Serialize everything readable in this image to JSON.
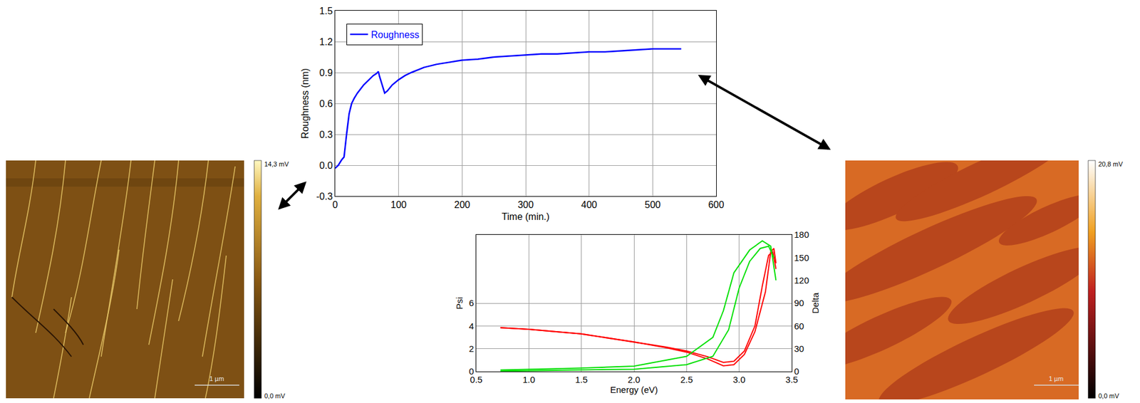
{
  "chart_data": [
    {
      "type": "line",
      "xlabel": "Time (min.)",
      "ylabel": "Roughness (nm)",
      "grid": true,
      "legend": "upper left",
      "x": [
        0,
        5,
        10,
        14,
        18,
        22,
        26,
        30,
        35,
        40,
        45,
        50,
        55,
        60,
        65,
        68,
        70,
        74,
        78,
        82,
        90,
        100,
        110,
        120,
        140,
        160,
        180,
        200,
        225,
        250,
        275,
        300,
        325,
        350,
        375,
        400,
        425,
        450,
        475,
        500,
        525,
        545
      ],
      "series": [
        {
          "name": "Roughness",
          "color": "#0000ff",
          "values": [
            -0.03,
            0.0,
            0.05,
            0.08,
            0.3,
            0.5,
            0.6,
            0.65,
            0.7,
            0.74,
            0.78,
            0.81,
            0.84,
            0.87,
            0.89,
            0.91,
            0.86,
            0.78,
            0.7,
            0.72,
            0.78,
            0.83,
            0.87,
            0.9,
            0.95,
            0.98,
            1.0,
            1.02,
            1.03,
            1.05,
            1.06,
            1.07,
            1.08,
            1.08,
            1.09,
            1.1,
            1.1,
            1.11,
            1.12,
            1.13,
            1.13,
            1.13
          ]
        }
      ],
      "xlim": [
        0,
        600
      ],
      "xticks": [
        0,
        100,
        200,
        300,
        400,
        500,
        600
      ],
      "ylim": [
        -0.3,
        1.5
      ],
      "yticks": [
        -0.3,
        {
          "value": 0,
          "label": "0.0"
        },
        0.3,
        0.6,
        0.9,
        1.2,
        1.5
      ]
    },
    {
      "type": "line",
      "xlabel": "Energy (eV)",
      "ylabel": "Psi",
      "y2label": "Delta",
      "grid": true,
      "series": [
        {
          "color": "#ff0000",
          "x": [
            0.73,
            1.0,
            1.5,
            2.0,
            2.3,
            2.5,
            2.7,
            2.85,
            2.95,
            3.05,
            3.15,
            3.25,
            3.3,
            3.33,
            3.35
          ],
          "values": [
            3.85,
            3.7,
            3.3,
            2.6,
            2.1,
            1.7,
            1.1,
            0.5,
            0.6,
            1.5,
            3.5,
            7.0,
            10.5,
            10.8,
            9.5
          ]
        },
        {
          "color": "#ff0000",
          "x": [
            0.73,
            1.0,
            1.5,
            2.0,
            2.3,
            2.5,
            2.7,
            2.85,
            2.95,
            3.05,
            3.15,
            3.22,
            3.28,
            3.32,
            3.35
          ],
          "values": [
            3.85,
            3.7,
            3.3,
            2.6,
            2.15,
            1.8,
            1.3,
            0.8,
            0.9,
            1.8,
            4.0,
            7.5,
            10.2,
            10.5,
            9.0
          ]
        },
        {
          "color": "#00e000",
          "axis": "y2",
          "x": [
            0.73,
            1.0,
            1.5,
            2.0,
            2.5,
            2.75,
            2.85,
            2.95,
            3.1,
            3.22,
            3.3,
            3.35
          ],
          "values": [
            2,
            3,
            4.5,
            7,
            20,
            45,
            80,
            130,
            160,
            172,
            165,
            120
          ]
        },
        {
          "color": "#00e000",
          "axis": "y2",
          "x": [
            0.73,
            1.0,
            1.5,
            2.0,
            2.5,
            2.75,
            2.9,
            3.0,
            3.1,
            3.2,
            3.28,
            3.33
          ],
          "values": [
            0.5,
            1,
            2,
            3,
            9,
            20,
            55,
            110,
            145,
            162,
            165,
            150
          ]
        }
      ],
      "xlim": [
        0.5,
        3.5
      ],
      "xticks": [
        0.5,
        {
          "value": 1,
          "label": "1.0"
        },
        1.5,
        {
          "value": 2,
          "label": "2.0"
        },
        2.5,
        {
          "value": 3,
          "label": "3.0"
        },
        3.5
      ],
      "ylim": [
        0,
        12
      ],
      "yticks": [
        0,
        2,
        4,
        6
      ],
      "y2lim": [
        0,
        180
      ],
      "y2ticks": [
        0,
        30,
        60,
        90,
        120,
        150,
        180
      ]
    }
  ],
  "afm_images": [
    {
      "colorbar_max": "14,3 mV",
      "colorbar_min": "0,0 mV",
      "scale_bar": "1 µm"
    },
    {
      "colorbar_max": "20,8 mV",
      "colorbar_min": "0,0 mV",
      "scale_bar": "1 µm"
    }
  ]
}
